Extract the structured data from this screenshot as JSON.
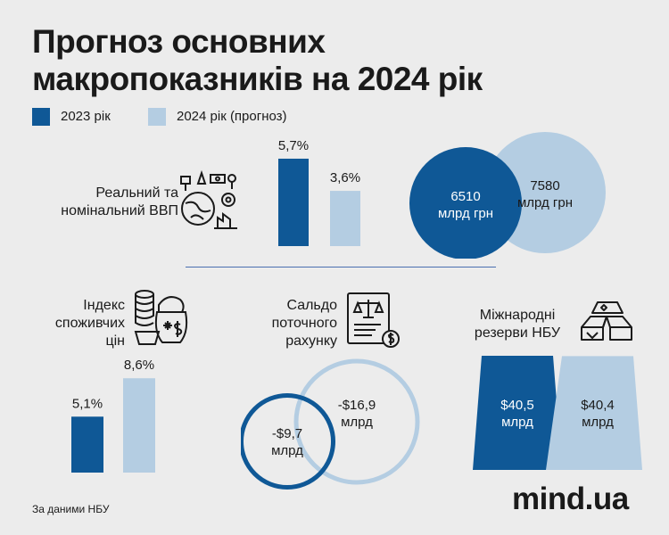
{
  "title_line1": "Прогноз основних",
  "title_line2": "макропоказників на 2024 рік",
  "legend": [
    {
      "label": "2023 рік",
      "color": "#0f5896"
    },
    {
      "label": "2024 рік (прогноз)",
      "color": "#b4cde2"
    }
  ],
  "colors": {
    "dark": "#0f5896",
    "light": "#b4cde2"
  },
  "gdp": {
    "label_line1": "Реальний та",
    "label_line2": "номінальний ВВП",
    "icon": "globe-economy-icon"
  },
  "cpi": {
    "label_line1": "Індекс",
    "label_line2": "споживчих",
    "label_line3": "цін",
    "icon": "coins-basket-icon"
  },
  "current_account": {
    "label_line1": "Сальдо",
    "label_line2": "поточного",
    "label_line3": "рахунку",
    "icon": "balance-document-icon"
  },
  "reserves": {
    "label_line1": "Міжнародні",
    "label_line2": "резерви НБУ",
    "icon": "gold-bars-icon"
  },
  "chart_data": [
    {
      "type": "bar",
      "name": "gdp-real",
      "categories": [
        "2023 рік",
        "2024 рік (прогноз)"
      ],
      "values": [
        5.7,
        3.6
      ],
      "value_labels": [
        "5,7%",
        "3,6%"
      ]
    },
    {
      "type": "bubble",
      "name": "gdp-nominal",
      "categories": [
        "2023 рік",
        "2024 рік (прогноз)"
      ],
      "values": [
        6510,
        7580
      ],
      "value_labels": [
        "6510",
        "7580"
      ],
      "unit": "млрд грн"
    },
    {
      "type": "bar",
      "name": "cpi",
      "categories": [
        "2023 рік",
        "2024 рік (прогноз)"
      ],
      "values": [
        5.1,
        8.6
      ],
      "value_labels": [
        "5,1%",
        "8,6%"
      ]
    },
    {
      "type": "bubble",
      "name": "current-account",
      "categories": [
        "2023 рік",
        "2024 рік (прогноз)"
      ],
      "values": [
        -9.7,
        -16.9
      ],
      "value_labels": [
        "-$9,7",
        "-$16,9"
      ],
      "unit": "млрд"
    },
    {
      "type": "trapezoid",
      "name": "reserves",
      "categories": [
        "2023 рік",
        "2024 рік (прогноз)"
      ],
      "values": [
        40.5,
        40.4
      ],
      "value_labels": [
        "$40,5",
        "$40,4"
      ],
      "unit": "млрд"
    }
  ],
  "source": "За даними НБУ",
  "logo": "mind.ua"
}
